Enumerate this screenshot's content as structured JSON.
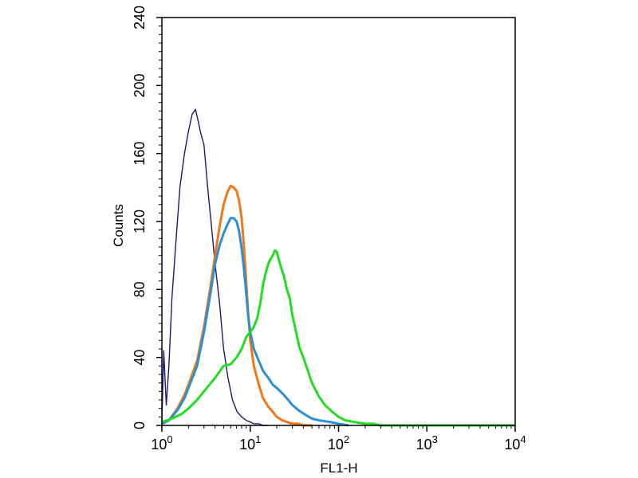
{
  "chart_data": {
    "type": "line",
    "xlabel": "FL1-H",
    "ylabel": "Counts",
    "x_scale": "log",
    "xlim": [
      1,
      10000
    ],
    "ylim": [
      0,
      240
    ],
    "x_ticks": [
      {
        "value": 1,
        "base": "10",
        "exp": "0"
      },
      {
        "value": 10,
        "base": "10",
        "exp": "1"
      },
      {
        "value": 100,
        "base": "10",
        "exp": "2"
      },
      {
        "value": 1000,
        "base": "10",
        "exp": "3"
      },
      {
        "value": 10000,
        "base": "10",
        "exp": "4"
      }
    ],
    "y_ticks": [
      "0",
      "40",
      "80",
      "120",
      "160",
      "200",
      "240"
    ],
    "grid": false,
    "legend": "none",
    "series": [
      {
        "color": "#1a1a7a",
        "x": [
          1.0,
          1.05,
          1.12,
          1.2,
          1.3,
          1.45,
          1.6,
          1.8,
          2.0,
          2.2,
          2.4,
          2.55,
          2.75,
          3.0,
          3.3,
          3.6,
          4.0,
          4.5,
          5.0,
          5.6,
          6.3,
          7.1,
          8.0,
          9.0,
          10.0,
          11.0,
          12.5,
          14.0,
          16.0
        ],
        "y": [
          2,
          44,
          12,
          35,
          75,
          110,
          140,
          160,
          173,
          183,
          186,
          180,
          172,
          165,
          140,
          120,
          95,
          72,
          45,
          28,
          15,
          8,
          5,
          3,
          2,
          1,
          1,
          0,
          0
        ]
      },
      {
        "color": "#f07818",
        "x": [
          1.0,
          1.2,
          1.5,
          1.8,
          2.0,
          2.5,
          3.0,
          3.5,
          4.0,
          4.5,
          5.0,
          5.5,
          6.0,
          6.5,
          7.0,
          7.5,
          8.0,
          8.5,
          9.0,
          9.5,
          10.0,
          11.0,
          12.5,
          14.0,
          16.0,
          18.0,
          20.0,
          23.0,
          26.0,
          30.0,
          35.0,
          40.0,
          50.0
        ],
        "y": [
          1,
          3,
          10,
          18,
          24,
          38,
          58,
          80,
          100,
          117,
          130,
          137,
          141,
          140,
          138,
          132,
          122,
          105,
          85,
          65,
          50,
          35,
          24,
          16,
          11,
          8,
          5,
          3,
          2,
          1,
          1,
          0,
          0
        ]
      },
      {
        "color": "#2b8fd6",
        "x": [
          1.0,
          1.2,
          1.5,
          1.8,
          2.0,
          2.5,
          3.0,
          3.5,
          4.0,
          4.5,
          5.0,
          5.5,
          6.0,
          6.5,
          7.0,
          7.5,
          8.0,
          8.5,
          9.0,
          9.5,
          10.0,
          11.0,
          12.5,
          14.0,
          16.0,
          18.0,
          20.0,
          23.0,
          26.0,
          30.0,
          35.0,
          40.0,
          50.0,
          60.0,
          80.0,
          100.0,
          130.0
        ],
        "y": [
          1,
          3,
          9,
          16,
          22,
          35,
          55,
          76,
          95,
          106,
          113,
          118,
          122,
          122,
          120,
          114,
          104,
          92,
          78,
          64,
          55,
          45,
          38,
          32,
          28,
          24,
          22,
          19,
          16,
          12,
          9,
          7,
          4,
          3,
          2,
          1,
          0
        ]
      },
      {
        "color": "#22dd22",
        "x": [
          1.0,
          1.3,
          1.7,
          2.0,
          2.5,
          3.0,
          4.0,
          5.0,
          6.0,
          7.0,
          8.0,
          9.0,
          10.0,
          11.0,
          12.0,
          13.0,
          14.0,
          15.0,
          16.0,
          17.0,
          18.0,
          19.0,
          20.0,
          21.0,
          22.0,
          24.0,
          26.0,
          28.0,
          30.0,
          33.0,
          36.0,
          40.0,
          45.0,
          50.0,
          60.0,
          70.0,
          85.0,
          100.0,
          120.0,
          150.0,
          200.0,
          250.0,
          300.0,
          400.0,
          500.0,
          10000.0
        ],
        "y": [
          2,
          4,
          7,
          10,
          15,
          20,
          28,
          35,
          36,
          40,
          45,
          52,
          55,
          58,
          63,
          72,
          83,
          90,
          95,
          98,
          100,
          103,
          102,
          98,
          94,
          88,
          80,
          75,
          65,
          55,
          46,
          40,
          32,
          25,
          17,
          12,
          8,
          5,
          3,
          2,
          1,
          1,
          0,
          0,
          0,
          0
        ]
      }
    ]
  }
}
